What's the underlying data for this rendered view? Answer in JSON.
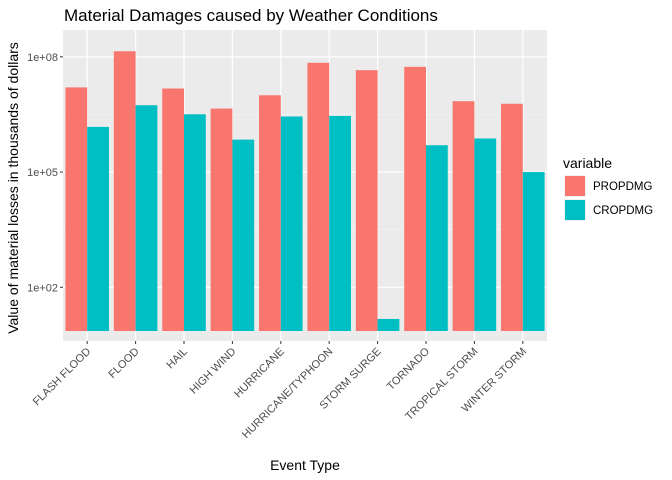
{
  "chart_data": {
    "type": "bar",
    "title": "Material Damages caused by Weather Conditions",
    "xlabel": "Event Type",
    "ylabel": "Value of material losses in thousands of dollars",
    "y_scale": "log10",
    "ylim": [
      4,
      500000000
    ],
    "y_ticks": [
      100,
      100000,
      100000000
    ],
    "y_tick_labels": [
      "1e+02",
      "1e+05",
      "1e+08"
    ],
    "grid": true,
    "legend_position": "right",
    "legend_title": "variable",
    "categories": [
      "FLASH FLOOD",
      "FLOOD",
      "HAIL",
      "HIGH WIND",
      "HURRICANE",
      "HURRICANE/TYPHOON",
      "STORM SURGE",
      "TORNADO",
      "TROPICAL STORM",
      "WINTER STORM"
    ],
    "series": [
      {
        "name": "PROPDMG",
        "color": "#F8766D",
        "values": [
          16000000,
          140000000,
          15000000,
          4500000,
          10000000,
          70000000,
          45000000,
          55000000,
          7000000,
          6000000
        ]
      },
      {
        "name": "CROPDMG",
        "color": "#00BFC4",
        "values": [
          1500000,
          5500000,
          3200000,
          700000,
          2800000,
          2900000,
          15,
          500000,
          750000,
          100000
        ]
      }
    ]
  }
}
